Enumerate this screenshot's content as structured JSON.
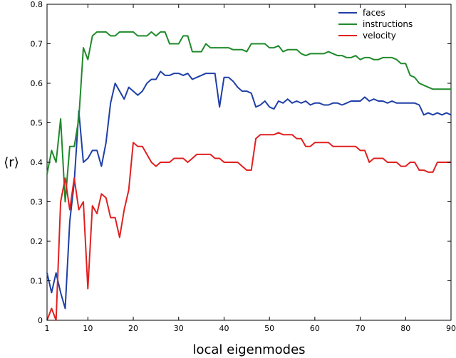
{
  "chart_data": {
    "type": "line",
    "title": "",
    "xlabel": "local eigenmodes",
    "ylabel": "⟨r⟩",
    "xlim": [
      1,
      90
    ],
    "ylim": [
      0,
      0.8
    ],
    "xticks": [
      1,
      10,
      20,
      30,
      40,
      50,
      60,
      70,
      80,
      90
    ],
    "yticks": [
      0,
      0.1,
      0.2,
      0.3,
      0.4,
      0.5,
      0.6,
      0.7,
      0.8
    ],
    "ytick_labels": [
      "0",
      "0.1",
      "0.2",
      "0.3",
      "0.4",
      "0.5",
      "0.6",
      "0.7",
      "0.8"
    ],
    "legend_position": "top-right",
    "grid": false,
    "series": [
      {
        "name": "faces",
        "color": "#1f3fa6",
        "x": [
          1,
          2,
          3,
          4,
          5,
          6,
          7,
          8,
          9,
          10,
          11,
          12,
          13,
          14,
          15,
          16,
          17,
          18,
          19,
          20,
          21,
          22,
          23,
          24,
          25,
          26,
          27,
          28,
          29,
          30,
          31,
          32,
          33,
          34,
          35,
          36,
          37,
          38,
          39,
          40,
          41,
          42,
          43,
          44,
          45,
          46,
          47,
          48,
          49,
          50,
          51,
          52,
          53,
          54,
          55,
          56,
          57,
          58,
          59,
          60,
          61,
          62,
          63,
          64,
          65,
          66,
          67,
          68,
          69,
          70,
          71,
          72,
          73,
          74,
          75,
          76,
          77,
          78,
          79,
          80,
          81,
          82,
          83,
          84,
          85,
          86,
          87,
          88,
          89,
          90
        ],
        "y": [
          0.12,
          0.07,
          0.12,
          0.07,
          0.03,
          0.25,
          0.35,
          0.53,
          0.4,
          0.41,
          0.43,
          0.43,
          0.39,
          0.45,
          0.55,
          0.6,
          0.58,
          0.56,
          0.59,
          0.58,
          0.57,
          0.58,
          0.6,
          0.61,
          0.61,
          0.63,
          0.62,
          0.62,
          0.625,
          0.625,
          0.62,
          0.625,
          0.61,
          0.615,
          0.62,
          0.625,
          0.625,
          0.625,
          0.54,
          0.615,
          0.615,
          0.605,
          0.59,
          0.58,
          0.58,
          0.575,
          0.54,
          0.545,
          0.555,
          0.54,
          0.535,
          0.555,
          0.55,
          0.56,
          0.55,
          0.555,
          0.55,
          0.555,
          0.545,
          0.55,
          0.55,
          0.545,
          0.545,
          0.55,
          0.55,
          0.545,
          0.55,
          0.555,
          0.555,
          0.555,
          0.565,
          0.555,
          0.56,
          0.555,
          0.555,
          0.55,
          0.555,
          0.55,
          0.55,
          0.55,
          0.55,
          0.55,
          0.545,
          0.52,
          0.525,
          0.52,
          0.525,
          0.52,
          0.525,
          0.52
        ]
      },
      {
        "name": "instructions",
        "color": "#1f8a2a",
        "x": [
          1,
          2,
          3,
          4,
          5,
          6,
          7,
          8,
          9,
          10,
          11,
          12,
          13,
          14,
          15,
          16,
          17,
          18,
          19,
          20,
          21,
          22,
          23,
          24,
          25,
          26,
          27,
          28,
          29,
          30,
          31,
          32,
          33,
          34,
          35,
          36,
          37,
          38,
          39,
          40,
          41,
          42,
          43,
          44,
          45,
          46,
          47,
          48,
          49,
          50,
          51,
          52,
          53,
          54,
          55,
          56,
          57,
          58,
          59,
          60,
          61,
          62,
          63,
          64,
          65,
          66,
          67,
          68,
          69,
          70,
          71,
          72,
          73,
          74,
          75,
          76,
          77,
          78,
          79,
          80,
          81,
          82,
          83,
          84,
          85,
          86,
          87,
          88,
          89,
          90
        ],
        "y": [
          0.37,
          0.43,
          0.4,
          0.51,
          0.3,
          0.44,
          0.44,
          0.51,
          0.69,
          0.66,
          0.72,
          0.73,
          0.73,
          0.73,
          0.72,
          0.72,
          0.73,
          0.73,
          0.73,
          0.73,
          0.72,
          0.72,
          0.72,
          0.73,
          0.72,
          0.73,
          0.73,
          0.7,
          0.7,
          0.7,
          0.72,
          0.72,
          0.68,
          0.68,
          0.68,
          0.7,
          0.69,
          0.69,
          0.69,
          0.69,
          0.69,
          0.685,
          0.685,
          0.685,
          0.68,
          0.7,
          0.7,
          0.7,
          0.7,
          0.69,
          0.69,
          0.695,
          0.68,
          0.685,
          0.685,
          0.685,
          0.675,
          0.67,
          0.675,
          0.675,
          0.675,
          0.675,
          0.68,
          0.675,
          0.67,
          0.67,
          0.665,
          0.665,
          0.67,
          0.66,
          0.665,
          0.665,
          0.66,
          0.66,
          0.665,
          0.665,
          0.665,
          0.66,
          0.65,
          0.65,
          0.62,
          0.615,
          0.6,
          0.595,
          0.59,
          0.585,
          0.585,
          0.585,
          0.585,
          0.585
        ]
      },
      {
        "name": "velocity",
        "color": "#e02020",
        "x": [
          1,
          2,
          3,
          4,
          5,
          6,
          7,
          8,
          9,
          10,
          11,
          12,
          13,
          14,
          15,
          16,
          17,
          18,
          19,
          20,
          21,
          22,
          23,
          24,
          25,
          26,
          27,
          28,
          29,
          30,
          31,
          32,
          33,
          34,
          35,
          36,
          37,
          38,
          39,
          40,
          41,
          42,
          43,
          44,
          45,
          46,
          47,
          48,
          49,
          50,
          51,
          52,
          53,
          54,
          55,
          56,
          57,
          58,
          59,
          60,
          61,
          62,
          63,
          64,
          65,
          66,
          67,
          68,
          69,
          70,
          71,
          72,
          73,
          74,
          75,
          76,
          77,
          78,
          79,
          80,
          81,
          82,
          83,
          84,
          85,
          86,
          87,
          88,
          89,
          90
        ],
        "y": [
          0.0,
          0.03,
          0.0,
          0.3,
          0.36,
          0.28,
          0.36,
          0.28,
          0.3,
          0.08,
          0.29,
          0.27,
          0.32,
          0.31,
          0.26,
          0.26,
          0.21,
          0.28,
          0.33,
          0.45,
          0.44,
          0.44,
          0.42,
          0.4,
          0.39,
          0.4,
          0.4,
          0.4,
          0.41,
          0.41,
          0.41,
          0.4,
          0.41,
          0.42,
          0.42,
          0.42,
          0.42,
          0.41,
          0.41,
          0.4,
          0.4,
          0.4,
          0.4,
          0.39,
          0.38,
          0.38,
          0.46,
          0.47,
          0.47,
          0.47,
          0.47,
          0.475,
          0.47,
          0.47,
          0.47,
          0.46,
          0.46,
          0.44,
          0.44,
          0.45,
          0.45,
          0.45,
          0.45,
          0.44,
          0.44,
          0.44,
          0.44,
          0.44,
          0.44,
          0.43,
          0.43,
          0.4,
          0.41,
          0.41,
          0.41,
          0.4,
          0.4,
          0.4,
          0.39,
          0.39,
          0.4,
          0.4,
          0.38,
          0.38,
          0.375,
          0.375,
          0.4,
          0.4,
          0.4,
          0.4
        ]
      }
    ]
  }
}
